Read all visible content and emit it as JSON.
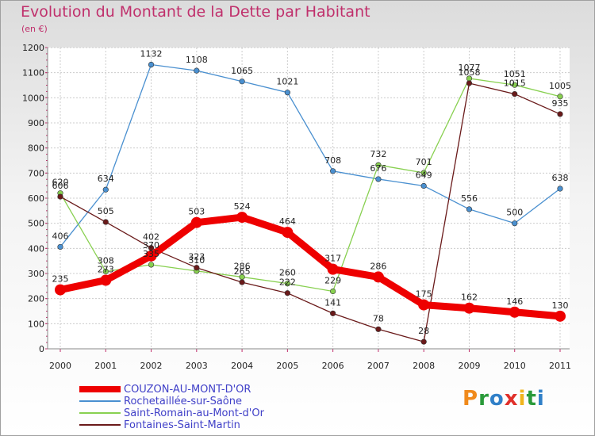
{
  "title": "Evolution du Montant de la Dette par Habitant",
  "subtitle": "(en €)",
  "logo": {
    "letters": [
      "P",
      "r",
      "o",
      "x",
      "i",
      "t",
      "i"
    ],
    "colors": [
      "#f08a1c",
      "#2a9a3a",
      "#3080c8",
      "#e0302a",
      "#f0b41c",
      "#2a9a3a",
      "#3080c8"
    ]
  },
  "chart_data": {
    "type": "line",
    "x": [
      "2000",
      "2001",
      "2002",
      "2003",
      "2004",
      "2005",
      "2006",
      "2007",
      "2008",
      "2009",
      "2010",
      "2011"
    ],
    "ylim": [
      0,
      1200
    ],
    "yticks": [
      0,
      100,
      200,
      300,
      400,
      500,
      600,
      700,
      800,
      900,
      1000,
      1100,
      1200
    ],
    "grid": true,
    "legend_position": "bottom-left",
    "series": [
      {
        "name": "COUZON-AU-MONT-D'OR",
        "color": "#ee0000",
        "values": [
          235,
          273,
          370,
          503,
          524,
          464,
          317,
          286,
          175,
          162,
          146,
          130
        ]
      },
      {
        "name": "Rochetaillée-sur-Saône",
        "color": "#4a90d0",
        "values": [
          406,
          634,
          1132,
          1108,
          1065,
          1021,
          708,
          676,
          649,
          556,
          500,
          638
        ]
      },
      {
        "name": "Saint-Romain-au-Mont-d'Or",
        "color": "#88d050",
        "values": [
          620,
          308,
          335,
          310,
          286,
          260,
          229,
          732,
          701,
          1077,
          1051,
          1005
        ]
      },
      {
        "name": "Fontaines-Saint-Martin",
        "color": "#6a1a1a",
        "values": [
          606,
          505,
          402,
          323,
          265,
          222,
          141,
          78,
          28,
          1058,
          1015,
          935
        ]
      }
    ]
  }
}
